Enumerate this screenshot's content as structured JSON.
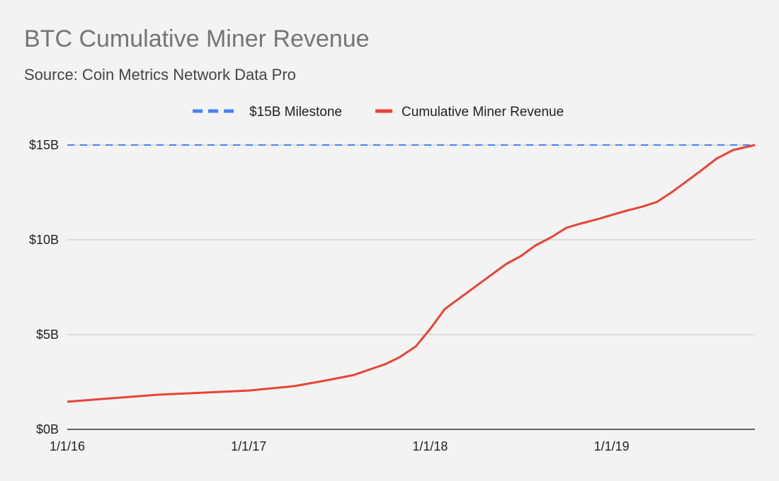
{
  "chart_data": {
    "type": "line",
    "title": "BTC Cumulative Miner Revenue",
    "subtitle": "Source: Coin Metrics Network Data Pro",
    "xlabel": "",
    "ylabel": "",
    "xlim": [
      2016.0,
      2019.79
    ],
    "ylim": [
      0,
      15
    ],
    "x_ticks": [
      {
        "value": 2016.0,
        "label": "1/1/16"
      },
      {
        "value": 2017.0,
        "label": "1/1/17"
      },
      {
        "value": 2018.0,
        "label": "1/1/18"
      },
      {
        "value": 2019.0,
        "label": "1/1/19"
      }
    ],
    "y_ticks": [
      {
        "value": 0,
        "label": "$0B"
      },
      {
        "value": 5,
        "label": "$5B"
      },
      {
        "value": 10,
        "label": "$10B"
      },
      {
        "value": 15,
        "label": "$15B"
      }
    ],
    "grid": true,
    "legend_position": "top",
    "series": [
      {
        "name": "$15B Milestone",
        "color": "#4285f4",
        "style": "dashed",
        "x": [
          2016.0,
          2019.79
        ],
        "values": [
          15,
          15
        ]
      },
      {
        "name": "Cumulative Miner Revenue",
        "color": "#ea4335",
        "style": "solid",
        "x": [
          2016.0,
          2016.5,
          2017.0,
          2017.25,
          2017.42,
          2017.58,
          2017.67,
          2017.75,
          2017.83,
          2017.92,
          2018.0,
          2018.08,
          2018.17,
          2018.25,
          2018.33,
          2018.42,
          2018.5,
          2018.58,
          2018.67,
          2018.75,
          2018.83,
          2018.92,
          2019.0,
          2019.08,
          2019.17,
          2019.25,
          2019.33,
          2019.42,
          2019.5,
          2019.58,
          2019.67,
          2019.79
        ],
        "values": [
          1.46,
          1.83,
          2.05,
          2.28,
          2.57,
          2.87,
          3.17,
          3.43,
          3.8,
          4.37,
          5.3,
          6.34,
          6.98,
          7.54,
          8.1,
          8.73,
          9.14,
          9.7,
          10.15,
          10.63,
          10.86,
          11.08,
          11.31,
          11.53,
          11.75,
          12.0,
          12.5,
          13.13,
          13.7,
          14.29,
          14.74,
          15.0
        ]
      }
    ]
  }
}
